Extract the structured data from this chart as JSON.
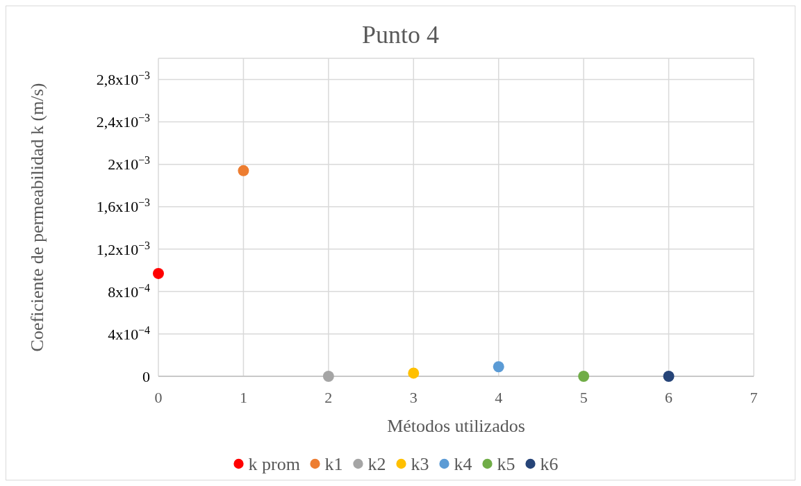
{
  "chart_data": {
    "type": "scatter",
    "title": "Punto 4",
    "xlabel": "Métodos utilizados",
    "ylabel": "Coeficiente de permeabilidad k (m/s)",
    "xlim": [
      0,
      7
    ],
    "xticks": [
      0,
      1,
      2,
      3,
      4,
      5,
      6,
      7
    ],
    "ylim": [
      0,
      0.003
    ],
    "yticks": [
      {
        "value": 0,
        "label": "0"
      },
      {
        "value": 0.0004,
        "label": "4x10$^{−4}$"
      },
      {
        "value": 0.0008,
        "label": "8x10$^{−4}$"
      },
      {
        "value": 0.0012,
        "label": "1,2x10$^{−3}$"
      },
      {
        "value": 0.0016,
        "label": "1,6x10$^{−3}$"
      },
      {
        "value": 0.002,
        "label": "2x10$^{−3}$"
      },
      {
        "value": 0.0024,
        "label": "2,4x10$^{−3}$"
      },
      {
        "value": 0.0028,
        "label": "2,8x10$^{−3}$"
      },
      {
        "value": 0.003,
        "label": null
      }
    ],
    "grid": true,
    "legend": "bottom",
    "marker": "circle",
    "series": [
      {
        "name": "k prom",
        "color": "#ff0000",
        "x": [
          0
        ],
        "values": [
          0.00097
        ]
      },
      {
        "name": "k1",
        "color": "#ed7d31",
        "x": [
          1
        ],
        "values": [
          0.00194
        ]
      },
      {
        "name": "k2",
        "color": "#a5a5a5",
        "x": [
          2
        ],
        "values": [
          0
        ]
      },
      {
        "name": "k3",
        "color": "#ffc000",
        "x": [
          3
        ],
        "values": [
          3e-05
        ]
      },
      {
        "name": "k4",
        "color": "#5b9bd5",
        "x": [
          4
        ],
        "values": [
          9e-05
        ]
      },
      {
        "name": "k5",
        "color": "#70ad47",
        "x": [
          5
        ],
        "values": [
          0
        ]
      },
      {
        "name": "k6",
        "color": "#264478",
        "x": [
          6
        ],
        "values": [
          0
        ]
      }
    ]
  }
}
